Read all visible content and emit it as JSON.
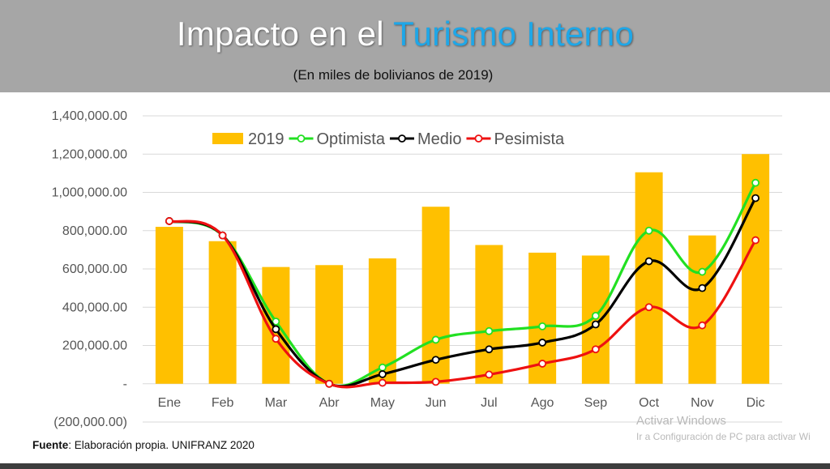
{
  "header": {
    "title_main": "Impacto en el ",
    "title_accent": "Turismo Interno",
    "subtitle": "(En miles de bolivianos de 2019)"
  },
  "footer": {
    "label": "Fuente",
    "text": ": Elaboración propia. UNIFRANZ 2020"
  },
  "watermark": {
    "line1": "Activar Windows",
    "line2": "Ir a Configuración de PC para activar Wi"
  },
  "colors": {
    "bar": "#ffc000",
    "optimista": "#22e022",
    "medio": "#000000",
    "pesimista": "#ee1111",
    "title_accent": "#1ea7e8",
    "header_band": "#a6a6a6"
  },
  "chart_data": {
    "type": "bar",
    "categories": [
      "Ene",
      "Feb",
      "Mar",
      "Abr",
      "May",
      "Jun",
      "Jul",
      "Ago",
      "Sep",
      "Oct",
      "Nov",
      "Dic"
    ],
    "ylim": [
      -200000,
      1400000
    ],
    "yticks": [
      -200000,
      0,
      200000,
      400000,
      600000,
      800000,
      1000000,
      1200000,
      1400000
    ],
    "ytick_labels": [
      "(200,000.00)",
      "-",
      "200,000.00",
      "400,000.00",
      "600,000.00",
      "800,000.00",
      "1,000,000.00",
      "1,200,000.00",
      "1,400,000.00"
    ],
    "grid": true,
    "legend_position": "top",
    "series": [
      {
        "name": "2019",
        "kind": "bar",
        "values": [
          820000,
          745000,
          610000,
          620000,
          655000,
          925000,
          725000,
          685000,
          670000,
          1105000,
          775000,
          1200000
        ]
      },
      {
        "name": "Optimista",
        "kind": "line",
        "values": [
          850000,
          775000,
          325000,
          0,
          85000,
          230000,
          275000,
          300000,
          355000,
          800000,
          585000,
          1050000
        ]
      },
      {
        "name": "Medio",
        "kind": "line",
        "values": [
          850000,
          775000,
          285000,
          0,
          50000,
          125000,
          180000,
          215000,
          310000,
          640000,
          500000,
          970000
        ]
      },
      {
        "name": "Pesimista",
        "kind": "line",
        "values": [
          850000,
          775000,
          235000,
          0,
          5000,
          10000,
          48000,
          105000,
          180000,
          400000,
          305000,
          750000
        ]
      }
    ]
  }
}
